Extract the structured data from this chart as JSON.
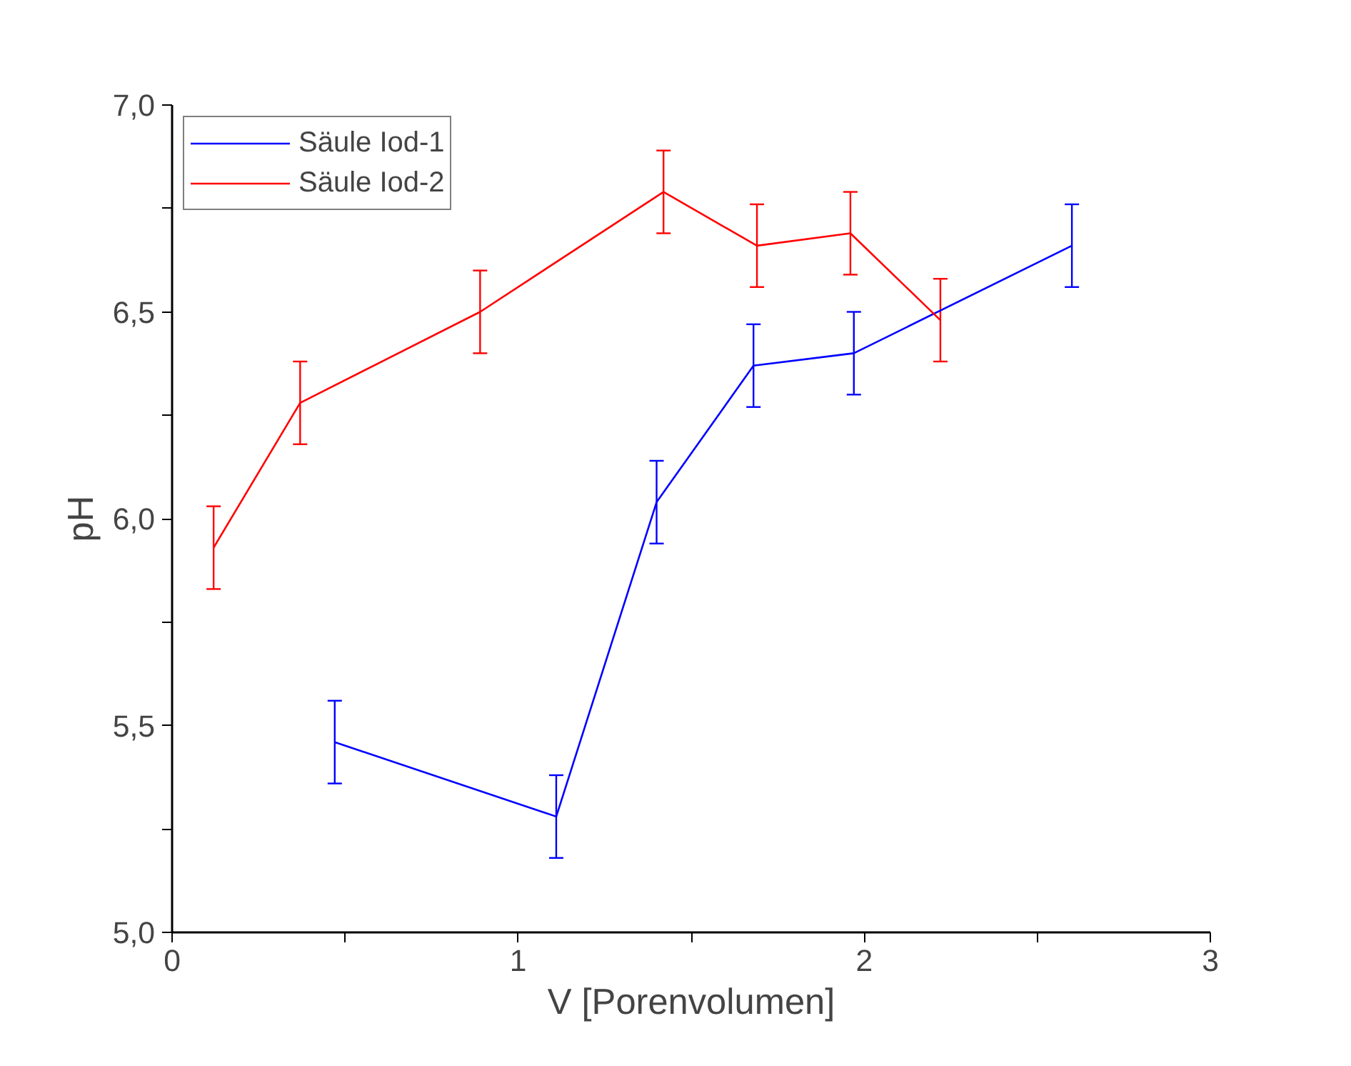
{
  "chart_data": {
    "type": "line",
    "xlabel": "V [Porenvolumen]",
    "ylabel": "pH",
    "xlim": [
      0,
      3
    ],
    "xticks": [
      0,
      {
        "value": 0.5,
        "label": null
      },
      1,
      {
        "value": 1.5,
        "label": null
      },
      2,
      {
        "value": 2.5,
        "label": null
      },
      3
    ],
    "ylim": [
      5,
      7
    ],
    "yticks": [
      {
        "value": 5,
        "label": "5,0"
      },
      {
        "value": 5.25,
        "label": null
      },
      {
        "value": 5.5,
        "label": "5,5"
      },
      {
        "value": 5.75,
        "label": null
      },
      {
        "value": 6,
        "label": "6,0"
      },
      {
        "value": 6.25,
        "label": null
      },
      {
        "value": 6.5,
        "label": "6,5"
      },
      {
        "value": 6.75,
        "label": null
      },
      {
        "value": 7,
        "label": "7,0"
      }
    ],
    "grid": false,
    "legend": "top left",
    "marker": "none",
    "line_style": "solid",
    "series": [
      {
        "name": "Säule Iod-1",
        "color": "#0000ff",
        "x": [
          0.47,
          1.11,
          1.4,
          1.68,
          1.97,
          2.6
        ],
        "values": [
          5.46,
          5.28,
          6.04,
          6.37,
          6.4,
          6.66
        ],
        "errors": [
          0.1,
          0.1,
          0.1,
          0.1,
          0.1,
          0.1
        ]
      },
      {
        "name": "Säule Iod-2",
        "color": "#ff0000",
        "x": [
          0.12,
          0.37,
          0.89,
          1.42,
          1.69,
          1.96,
          2.22
        ],
        "values": [
          5.93,
          6.28,
          6.5,
          6.79,
          6.66,
          6.69,
          6.48
        ],
        "errors": [
          0.1,
          0.1,
          0.1,
          0.1,
          0.1,
          0.1,
          0.1
        ]
      }
    ]
  }
}
